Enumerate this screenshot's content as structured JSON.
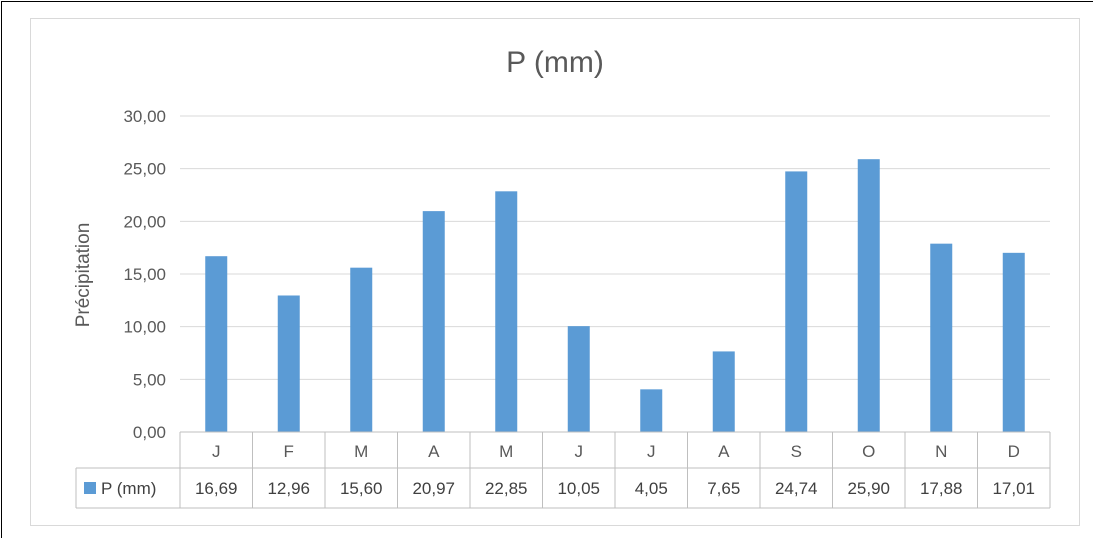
{
  "chart_data": {
    "type": "bar",
    "title": "P (mm)",
    "ylabel": "Précipitation",
    "xlabel": "",
    "categories": [
      "J",
      "F",
      "M",
      "A",
      "M",
      "J",
      "J",
      "A",
      "S",
      "O",
      "N",
      "D"
    ],
    "series": [
      {
        "name": "P (mm)",
        "color": "#5b9bd5",
        "values": [
          16.69,
          12.96,
          15.6,
          20.97,
          22.85,
          10.05,
          4.05,
          7.65,
          24.74,
          25.9,
          17.88,
          17.01
        ],
        "labels": [
          "16,69",
          "12,96",
          "15,60",
          "20,97",
          "22,85",
          "10,05",
          "4,05",
          "7,65",
          "24,74",
          "25,90",
          "17,88",
          "17,01"
        ]
      }
    ],
    "ylim": [
      0,
      30
    ],
    "yticks": [
      "0,00",
      "5,00",
      "10,00",
      "15,00",
      "20,00",
      "25,00",
      "30,00"
    ],
    "grid": true,
    "data_table": true,
    "legend_position": "data-table"
  }
}
